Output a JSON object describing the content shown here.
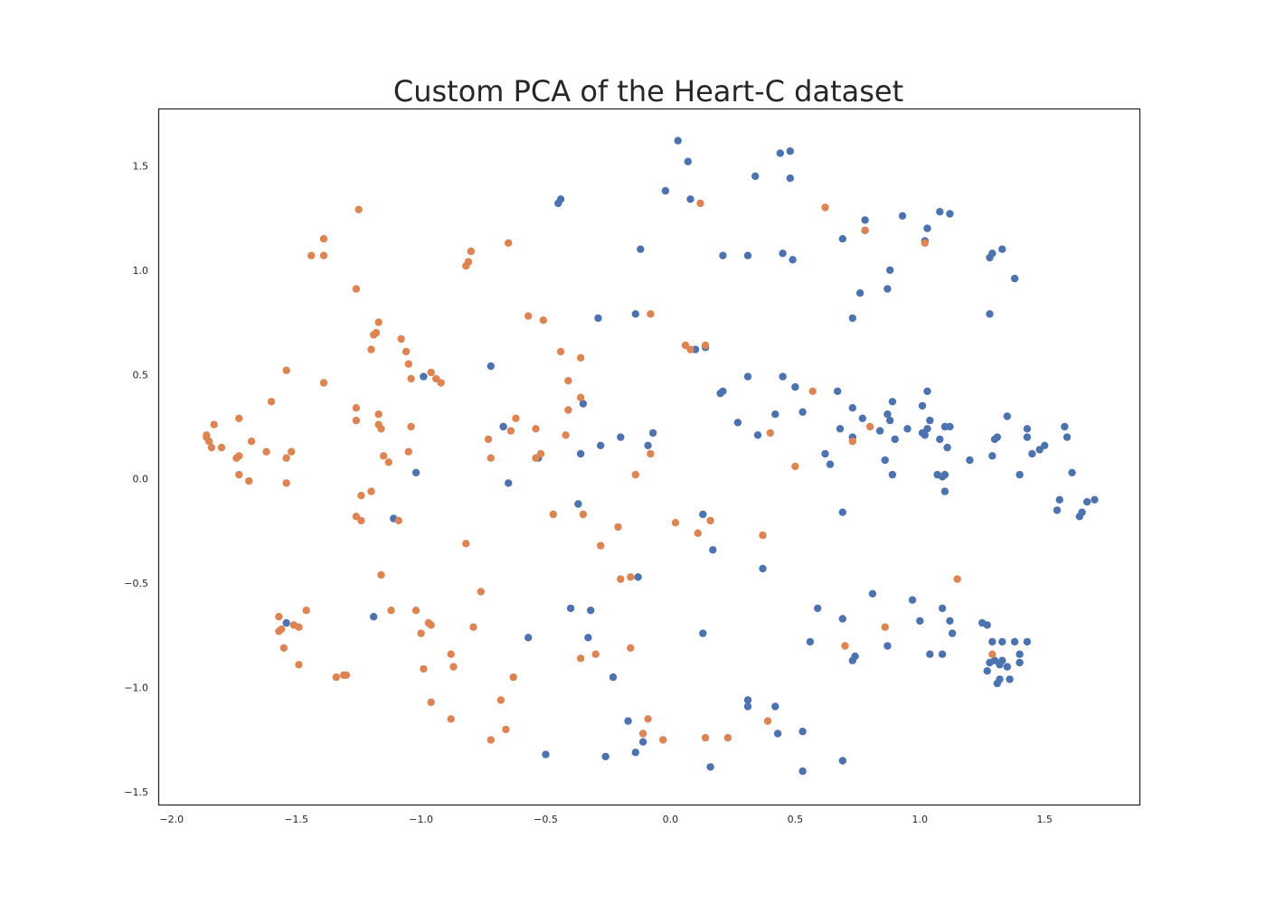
{
  "chart_data": {
    "type": "scatter",
    "title": "Custom PCA of the Heart-C dataset",
    "xlabel": "",
    "ylabel": "",
    "xlim": [
      -2.05,
      1.88
    ],
    "ylim": [
      -1.56,
      1.77
    ],
    "x_ticks": [
      -2.0,
      -1.5,
      -1.0,
      -0.5,
      0.0,
      0.5,
      1.0,
      1.5
    ],
    "x_tick_labels": [
      "−2.0",
      "−1.5",
      "−1.0",
      "−0.5",
      "0.0",
      "0.5",
      "1.0",
      "1.5"
    ],
    "y_ticks": [
      -1.5,
      -1.0,
      -0.5,
      0.0,
      0.5,
      1.0,
      1.5
    ],
    "y_tick_labels": [
      "−1.5",
      "−1.0",
      "−0.5",
      "0.0",
      "0.5",
      "1.0",
      "1.5"
    ],
    "grid": false,
    "colors": {
      "blue_series": "#4c72b0",
      "orange_series": "#dd8452",
      "text": "#262626",
      "frame": "#262626"
    },
    "series": [
      {
        "color": "#4c72b0",
        "points": [
          [
            0.03,
            1.62
          ],
          [
            0.07,
            1.52
          ],
          [
            0.34,
            1.45
          ],
          [
            0.44,
            1.56
          ],
          [
            0.48,
            1.57
          ],
          [
            0.48,
            1.44
          ],
          [
            -0.02,
            1.38
          ],
          [
            0.08,
            1.34
          ],
          [
            -0.44,
            1.34
          ],
          [
            -0.45,
            1.32
          ],
          [
            -0.12,
            1.1
          ],
          [
            0.21,
            1.07
          ],
          [
            0.31,
            1.07
          ],
          [
            0.45,
            1.08
          ],
          [
            0.49,
            1.05
          ],
          [
            0.69,
            1.15
          ],
          [
            0.78,
            1.24
          ],
          [
            0.78,
            1.19
          ],
          [
            0.93,
            1.26
          ],
          [
            1.03,
            1.2
          ],
          [
            1.02,
            1.14
          ],
          [
            1.08,
            1.28
          ],
          [
            1.12,
            1.27
          ],
          [
            1.29,
            1.08
          ],
          [
            1.28,
            1.06
          ],
          [
            1.33,
            1.1
          ],
          [
            1.38,
            0.96
          ],
          [
            0.76,
            0.89
          ],
          [
            0.88,
            1.0
          ],
          [
            0.87,
            0.91
          ],
          [
            0.73,
            0.77
          ],
          [
            1.28,
            0.79
          ],
          [
            -0.29,
            0.77
          ],
          [
            -0.14,
            0.79
          ],
          [
            0.14,
            0.63
          ],
          [
            0.1,
            0.62
          ],
          [
            -0.72,
            0.54
          ],
          [
            -0.99,
            0.49
          ],
          [
            0.2,
            0.41
          ],
          [
            0.21,
            0.42
          ],
          [
            0.31,
            0.49
          ],
          [
            0.45,
            0.49
          ],
          [
            0.5,
            0.44
          ],
          [
            0.42,
            0.31
          ],
          [
            0.53,
            0.32
          ],
          [
            0.27,
            0.27
          ],
          [
            0.35,
            0.21
          ],
          [
            0.67,
            0.42
          ],
          [
            0.73,
            0.34
          ],
          [
            0.77,
            0.29
          ],
          [
            0.87,
            0.31
          ],
          [
            0.89,
            0.37
          ],
          [
            0.88,
            0.28
          ],
          [
            0.84,
            0.23
          ],
          [
            0.9,
            0.19
          ],
          [
            0.95,
            0.24
          ],
          [
            1.01,
            0.35
          ],
          [
            1.03,
            0.42
          ],
          [
            1.04,
            0.28
          ],
          [
            1.03,
            0.24
          ],
          [
            1.01,
            0.22
          ],
          [
            1.02,
            0.21
          ],
          [
            1.08,
            0.19
          ],
          [
            1.1,
            0.25
          ],
          [
            1.12,
            0.25
          ],
          [
            1.11,
            0.15
          ],
          [
            0.68,
            0.24
          ],
          [
            0.73,
            0.2
          ],
          [
            0.62,
            0.12
          ],
          [
            0.64,
            0.07
          ],
          [
            0.86,
            0.09
          ],
          [
            0.89,
            0.02
          ],
          [
            1.07,
            0.02
          ],
          [
            1.09,
            0.01
          ],
          [
            1.1,
            0.02
          ],
          [
            1.1,
            -0.06
          ],
          [
            1.2,
            0.09
          ],
          [
            1.3,
            0.19
          ],
          [
            1.31,
            0.2
          ],
          [
            1.35,
            0.3
          ],
          [
            1.29,
            0.11
          ],
          [
            1.43,
            0.24
          ],
          [
            1.43,
            0.2
          ],
          [
            1.45,
            0.12
          ],
          [
            1.48,
            0.14
          ],
          [
            1.5,
            0.16
          ],
          [
            1.4,
            0.02
          ],
          [
            1.58,
            0.25
          ],
          [
            1.59,
            0.2
          ],
          [
            1.61,
            0.03
          ],
          [
            1.56,
            -0.1
          ],
          [
            1.55,
            -0.15
          ],
          [
            1.65,
            -0.16
          ],
          [
            1.64,
            -0.18
          ],
          [
            1.67,
            -0.11
          ],
          [
            1.7,
            -0.1
          ],
          [
            -0.67,
            0.25
          ],
          [
            -0.53,
            0.1
          ],
          [
            -0.35,
            0.36
          ],
          [
            -0.36,
            0.12
          ],
          [
            -0.28,
            0.16
          ],
          [
            -0.2,
            0.2
          ],
          [
            -0.09,
            0.16
          ],
          [
            -0.07,
            0.22
          ],
          [
            -1.02,
            0.03
          ],
          [
            -0.65,
            -0.02
          ],
          [
            -1.11,
            -0.19
          ],
          [
            -0.37,
            -0.12
          ],
          [
            0.69,
            -0.16
          ],
          [
            0.13,
            -0.17
          ],
          [
            0.17,
            -0.34
          ],
          [
            0.37,
            -0.43
          ],
          [
            -0.13,
            -0.47
          ],
          [
            -1.19,
            -0.66
          ],
          [
            -1.54,
            -0.69
          ],
          [
            -0.4,
            -0.62
          ],
          [
            -0.32,
            -0.63
          ],
          [
            -0.57,
            -0.76
          ],
          [
            -0.33,
            -0.76
          ],
          [
            0.13,
            -0.74
          ],
          [
            0.59,
            -0.62
          ],
          [
            0.56,
            -0.78
          ],
          [
            0.69,
            -0.67
          ],
          [
            0.81,
            -0.55
          ],
          [
            0.73,
            -0.87
          ],
          [
            0.74,
            -0.85
          ],
          [
            0.87,
            -0.8
          ],
          [
            0.97,
            -0.58
          ],
          [
            1.0,
            -0.68
          ],
          [
            1.04,
            -0.84
          ],
          [
            1.09,
            -0.84
          ],
          [
            1.09,
            -0.62
          ],
          [
            1.12,
            -0.68
          ],
          [
            1.13,
            -0.74
          ],
          [
            1.25,
            -0.69
          ],
          [
            1.27,
            -0.7
          ],
          [
            1.29,
            -0.78
          ],
          [
            1.33,
            -0.78
          ],
          [
            1.38,
            -0.78
          ],
          [
            1.43,
            -0.78
          ],
          [
            1.28,
            -0.88
          ],
          [
            1.27,
            -0.92
          ],
          [
            1.3,
            -0.87
          ],
          [
            1.33,
            -0.87
          ],
          [
            1.32,
            -0.89
          ],
          [
            1.35,
            -0.9
          ],
          [
            1.4,
            -0.84
          ],
          [
            1.4,
            -0.88
          ],
          [
            1.31,
            -0.98
          ],
          [
            1.32,
            -0.96
          ],
          [
            1.36,
            -0.96
          ],
          [
            -0.23,
            -0.95
          ],
          [
            0.31,
            -1.06
          ],
          [
            0.31,
            -1.09
          ],
          [
            0.42,
            -1.09
          ],
          [
            -0.17,
            -1.16
          ],
          [
            -0.11,
            -1.26
          ],
          [
            -0.14,
            -1.31
          ],
          [
            -0.26,
            -1.33
          ],
          [
            -0.5,
            -1.32
          ],
          [
            0.16,
            -1.38
          ],
          [
            0.43,
            -1.22
          ],
          [
            0.53,
            -1.21
          ],
          [
            0.53,
            -1.4
          ],
          [
            0.69,
            -1.35
          ]
        ]
      },
      {
        "color": "#dd8452",
        "points": [
          [
            -1.25,
            1.29
          ],
          [
            -1.39,
            1.15
          ],
          [
            -1.44,
            1.07
          ],
          [
            -1.39,
            1.07
          ],
          [
            -1.26,
            0.91
          ],
          [
            -0.8,
            1.09
          ],
          [
            -0.82,
            1.02
          ],
          [
            -0.81,
            1.04
          ],
          [
            -0.65,
            1.13
          ],
          [
            0.12,
            1.32
          ],
          [
            0.62,
            1.3
          ],
          [
            0.78,
            1.19
          ],
          [
            1.02,
            1.13
          ],
          [
            -0.57,
            0.78
          ],
          [
            -0.51,
            0.76
          ],
          [
            -0.08,
            0.79
          ],
          [
            0.06,
            0.64
          ],
          [
            0.08,
            0.62
          ],
          [
            0.14,
            0.64
          ],
          [
            -1.17,
            0.75
          ],
          [
            -1.18,
            0.7
          ],
          [
            -1.19,
            0.69
          ],
          [
            -1.2,
            0.62
          ],
          [
            -1.08,
            0.67
          ],
          [
            -1.06,
            0.61
          ],
          [
            -1.05,
            0.55
          ],
          [
            -1.04,
            0.48
          ],
          [
            -0.96,
            0.51
          ],
          [
            -0.94,
            0.48
          ],
          [
            -0.92,
            0.46
          ],
          [
            -0.44,
            0.61
          ],
          [
            -0.36,
            0.58
          ],
          [
            -0.41,
            0.47
          ],
          [
            -0.36,
            0.39
          ],
          [
            -0.41,
            0.33
          ],
          [
            -0.42,
            0.21
          ],
          [
            -1.54,
            0.52
          ],
          [
            -1.39,
            0.46
          ],
          [
            -1.6,
            0.37
          ],
          [
            -1.26,
            0.34
          ],
          [
            -1.26,
            0.28
          ],
          [
            -1.17,
            0.31
          ],
          [
            -1.17,
            0.26
          ],
          [
            -1.16,
            0.24
          ],
          [
            -1.04,
            0.25
          ],
          [
            -1.15,
            0.11
          ],
          [
            -1.13,
            0.08
          ],
          [
            -1.05,
            0.13
          ],
          [
            -0.62,
            0.29
          ],
          [
            -0.64,
            0.23
          ],
          [
            -0.54,
            0.24
          ],
          [
            -0.73,
            0.19
          ],
          [
            -0.72,
            0.1
          ],
          [
            -0.54,
            0.1
          ],
          [
            -0.52,
            0.12
          ],
          [
            -1.86,
            0.21
          ],
          [
            -1.86,
            0.2
          ],
          [
            -1.85,
            0.18
          ],
          [
            -1.84,
            0.15
          ],
          [
            -1.83,
            0.26
          ],
          [
            -1.8,
            0.15
          ],
          [
            -1.73,
            0.29
          ],
          [
            -1.68,
            0.18
          ],
          [
            -1.62,
            0.13
          ],
          [
            -1.73,
            0.11
          ],
          [
            -1.74,
            0.1
          ],
          [
            -1.52,
            0.13
          ],
          [
            -1.54,
            0.1
          ],
          [
            -1.73,
            0.02
          ],
          [
            -1.69,
            -0.01
          ],
          [
            -1.54,
            -0.02
          ],
          [
            -1.24,
            -0.08
          ],
          [
            -1.2,
            -0.06
          ],
          [
            -1.26,
            -0.18
          ],
          [
            -1.24,
            -0.2
          ],
          [
            -1.09,
            -0.2
          ],
          [
            -0.47,
            -0.17
          ],
          [
            -0.35,
            -0.17
          ],
          [
            -0.08,
            0.12
          ],
          [
            -0.14,
            0.02
          ],
          [
            0.02,
            -0.21
          ],
          [
            0.11,
            -0.26
          ],
          [
            0.16,
            -0.2
          ],
          [
            0.37,
            -0.27
          ],
          [
            0.4,
            0.22
          ],
          [
            0.5,
            0.06
          ],
          [
            0.57,
            0.42
          ],
          [
            0.73,
            0.18
          ],
          [
            0.8,
            0.25
          ],
          [
            -0.82,
            -0.31
          ],
          [
            -0.28,
            -0.32
          ],
          [
            -0.21,
            -0.23
          ],
          [
            -0.2,
            -0.48
          ],
          [
            -0.16,
            -0.47
          ],
          [
            -1.16,
            -0.46
          ],
          [
            -0.76,
            -0.54
          ],
          [
            -1.57,
            -0.66
          ],
          [
            -1.51,
            -0.7
          ],
          [
            -1.46,
            -0.63
          ],
          [
            -1.49,
            -0.71
          ],
          [
            -1.56,
            -0.72
          ],
          [
            -1.57,
            -0.73
          ],
          [
            -1.55,
            -0.81
          ],
          [
            -1.49,
            -0.89
          ],
          [
            -1.34,
            -0.95
          ],
          [
            -1.31,
            -0.94
          ],
          [
            -1.3,
            -0.94
          ],
          [
            -1.12,
            -0.63
          ],
          [
            -1.02,
            -0.63
          ],
          [
            -0.97,
            -0.69
          ],
          [
            -0.96,
            -0.7
          ],
          [
            -1.0,
            -0.74
          ],
          [
            -0.79,
            -0.71
          ],
          [
            -0.88,
            -0.84
          ],
          [
            -0.87,
            -0.9
          ],
          [
            -0.99,
            -0.91
          ],
          [
            -0.96,
            -1.07
          ],
          [
            -0.88,
            -1.15
          ],
          [
            -0.68,
            -1.06
          ],
          [
            -0.72,
            -1.25
          ],
          [
            -0.66,
            -1.2
          ],
          [
            -0.63,
            -0.95
          ],
          [
            -0.36,
            -0.86
          ],
          [
            -0.3,
            -0.84
          ],
          [
            -0.16,
            -0.81
          ],
          [
            0.7,
            -0.8
          ],
          [
            0.86,
            -0.71
          ],
          [
            1.15,
            -0.48
          ],
          [
            1.29,
            -0.84
          ],
          [
            0.39,
            -1.16
          ],
          [
            0.14,
            -1.24
          ],
          [
            0.23,
            -1.24
          ],
          [
            -0.09,
            -1.15
          ],
          [
            -0.11,
            -1.22
          ],
          [
            -0.03,
            -1.25
          ]
        ]
      }
    ]
  }
}
